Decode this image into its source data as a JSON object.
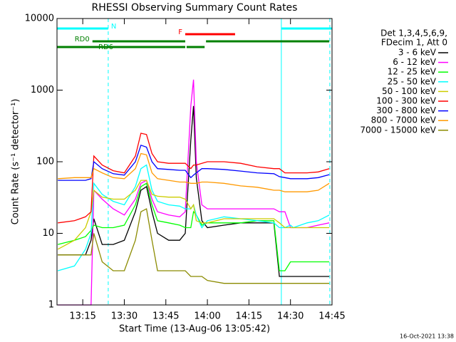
{
  "chart_data": {
    "type": "line",
    "title": "RHESSI Observing Summary Count Rates",
    "xlabel": "Start Time (13-Aug-06 13:05:42)",
    "ylabel": "Count Rate (s⁻¹ detector⁻¹)",
    "footer": "16-Oct-2021 13:38",
    "legend_header": [
      "Det 1,3,4,5,6,9,",
      "FDecim 1, Att 0"
    ],
    "ylog": true,
    "ylim": [
      1,
      10000
    ],
    "yticks": [
      1,
      10,
      100,
      1000,
      10000
    ],
    "xlim": [
      5.7,
      105
    ],
    "xticks": [
      {
        "value": 15,
        "label": "13:15"
      },
      {
        "value": 30,
        "label": "13:30"
      },
      {
        "value": 45,
        "label": "13:45"
      },
      {
        "value": 60,
        "label": "14:00"
      },
      {
        "value": 75,
        "label": "14:15"
      },
      {
        "value": 90,
        "label": "14:30"
      },
      {
        "value": 105,
        "label": "14:45"
      }
    ],
    "x": [
      6,
      12,
      16,
      18,
      19,
      22,
      26,
      30,
      34,
      36,
      38,
      40,
      42,
      46,
      50,
      52,
      54,
      55,
      56,
      58,
      60,
      66,
      72,
      78,
      84,
      86,
      88,
      90,
      91,
      96,
      100,
      104
    ],
    "series": [
      {
        "name": "3 - 6 keV",
        "color": "#000000",
        "values": [
          5,
          5,
          5,
          8,
          16,
          7,
          7,
          8,
          20,
          40,
          45,
          20,
          10,
          8,
          8,
          10,
          200,
          600,
          60,
          15,
          12,
          13,
          14,
          14,
          14,
          2.5,
          2.5,
          2.5,
          2.5,
          2.5,
          2.5,
          2.5
        ]
      },
      {
        "name": "6 - 12 keV",
        "color": "#ff00ff",
        "values": [
          1,
          1,
          1,
          1,
          40,
          30,
          22,
          18,
          30,
          50,
          55,
          30,
          20,
          18,
          17,
          20,
          600,
          1400,
          100,
          25,
          22,
          22,
          22,
          22,
          22,
          20,
          20,
          12,
          12,
          12,
          13,
          14
        ]
      },
      {
        "name": "12 - 25 keV",
        "color": "#00ff00",
        "values": [
          7,
          8,
          9,
          11,
          13,
          12,
          12,
          13,
          25,
          45,
          50,
          25,
          15,
          14,
          13,
          12,
          12,
          20,
          18,
          13,
          14,
          14,
          14,
          15,
          15,
          3,
          3,
          4,
          4,
          4,
          4,
          4
        ]
      },
      {
        "name": "25 - 50 keV",
        "color": "#00ffff",
        "values": [
          3,
          3.5,
          6,
          10,
          50,
          35,
          28,
          25,
          45,
          80,
          90,
          40,
          28,
          25,
          24,
          22,
          22,
          25,
          18,
          12,
          15,
          17,
          16,
          15,
          14,
          12,
          12,
          13,
          12,
          14,
          15,
          18
        ]
      },
      {
        "name": "50 - 100 keV",
        "color": "#cccc00",
        "values": [
          6,
          8,
          12,
          20,
          40,
          32,
          30,
          30,
          40,
          55,
          55,
          35,
          33,
          32,
          32,
          30,
          22,
          25,
          15,
          14,
          14,
          16,
          16,
          16,
          16,
          14,
          12,
          12,
          12,
          12,
          12,
          12
        ]
      },
      {
        "name": "100 - 300 keV",
        "color": "#ff0000",
        "values": [
          14,
          15,
          17,
          20,
          120,
          90,
          75,
          70,
          120,
          250,
          240,
          130,
          100,
          95,
          95,
          95,
          80,
          90,
          90,
          95,
          100,
          100,
          95,
          85,
          80,
          80,
          70,
          70,
          70,
          70,
          72,
          80
        ]
      },
      {
        "name": "300 - 800 keV",
        "color": "#0000ff",
        "values": [
          55,
          55,
          55,
          58,
          100,
          80,
          68,
          65,
          100,
          170,
          160,
          100,
          80,
          78,
          76,
          76,
          60,
          65,
          70,
          80,
          80,
          78,
          74,
          70,
          68,
          62,
          60,
          58,
          58,
          58,
          60,
          66
        ]
      },
      {
        "name": "800 - 7000 keV",
        "color": "#ff9900",
        "values": [
          58,
          60,
          60,
          60,
          80,
          70,
          60,
          58,
          80,
          130,
          125,
          70,
          58,
          55,
          52,
          52,
          50,
          50,
          50,
          52,
          52,
          50,
          46,
          44,
          40,
          40,
          38,
          38,
          38,
          38,
          40,
          50
        ]
      },
      {
        "name": "7000 - 15000 keV",
        "color": "#8b8b00",
        "values": [
          5,
          5,
          5,
          5,
          10,
          4,
          3,
          3,
          8,
          20,
          22,
          8,
          3,
          3,
          3,
          3,
          2.5,
          2.5,
          2.5,
          2.5,
          2.2,
          2,
          2,
          2,
          2,
          2,
          2,
          2,
          2,
          2,
          2,
          2
        ]
      }
    ],
    "flags": [
      {
        "label": "N",
        "color": "#00ffff",
        "segments": [
          [
            5.7,
            24.2
          ],
          [
            86.7,
            105
          ]
        ]
      },
      {
        "label": "F",
        "color": "#ff0000",
        "segments": [
          [
            52,
            70
          ]
        ]
      },
      {
        "label": "RD0",
        "color": "#008000",
        "segments": [
          [
            18.5,
            52
          ],
          [
            59.5,
            104
          ]
        ]
      },
      {
        "label": "RD6",
        "color": "#008000",
        "segments": [
          [
            5.7,
            52
          ],
          [
            52.5,
            59
          ]
        ]
      }
    ],
    "markers": [
      {
        "x": 5.7,
        "color": "#00ffff",
        "dashed": false
      },
      {
        "x": 24.2,
        "color": "#00ffff",
        "dashed": true
      },
      {
        "x": 86.7,
        "color": "#00ffff",
        "dashed": false
      },
      {
        "x": 104.2,
        "color": "#00ffff",
        "dashed": true
      }
    ]
  }
}
